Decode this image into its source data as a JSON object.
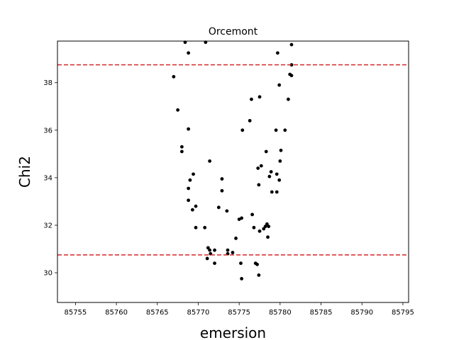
{
  "chart_data": {
    "type": "scatter",
    "title": "Orcemont",
    "xlabel": "emersion",
    "ylabel": "Chi2",
    "xlim": [
      85752.8,
      85795.7
    ],
    "ylim": [
      28.75,
      39.75
    ],
    "xticks": [
      85755,
      85760,
      85765,
      85770,
      85775,
      85780,
      85785,
      85790,
      85795
    ],
    "yticks": [
      30,
      32,
      34,
      36,
      38
    ],
    "grid": false,
    "marker_color": "#000000",
    "hlines": [
      {
        "y": 38.75,
        "color": "#d62728",
        "style": "dashed"
      },
      {
        "y": 30.75,
        "color": "#d62728",
        "style": "dashed"
      }
    ],
    "points": [
      {
        "x": 85768.4,
        "y": 39.7
      },
      {
        "x": 85770.9,
        "y": 39.7
      },
      {
        "x": 85768.8,
        "y": 39.25
      },
      {
        "x": 85767.0,
        "y": 38.25
      },
      {
        "x": 85767.5,
        "y": 36.85
      },
      {
        "x": 85768.8,
        "y": 36.05
      },
      {
        "x": 85768.0,
        "y": 35.3
      },
      {
        "x": 85768.0,
        "y": 35.1
      },
      {
        "x": 85769.4,
        "y": 34.15
      },
      {
        "x": 85769.0,
        "y": 33.9
      },
      {
        "x": 85768.8,
        "y": 33.55
      },
      {
        "x": 85768.8,
        "y": 33.05
      },
      {
        "x": 85769.7,
        "y": 32.8
      },
      {
        "x": 85769.3,
        "y": 32.65
      },
      {
        "x": 85769.7,
        "y": 31.9
      },
      {
        "x": 85770.8,
        "y": 31.9
      },
      {
        "x": 85771.4,
        "y": 34.7
      },
      {
        "x": 85771.2,
        "y": 31.05
      },
      {
        "x": 85771.4,
        "y": 30.95
      },
      {
        "x": 85771.5,
        "y": 30.8
      },
      {
        "x": 85771.1,
        "y": 30.6
      },
      {
        "x": 85772.0,
        "y": 30.95
      },
      {
        "x": 85772.0,
        "y": 30.4
      },
      {
        "x": 85772.5,
        "y": 32.75
      },
      {
        "x": 85772.9,
        "y": 33.95
      },
      {
        "x": 85772.9,
        "y": 33.45
      },
      {
        "x": 85773.5,
        "y": 32.6
      },
      {
        "x": 85773.6,
        "y": 30.95
      },
      {
        "x": 85773.6,
        "y": 30.8
      },
      {
        "x": 85774.2,
        "y": 30.85
      },
      {
        "x": 85774.6,
        "y": 31.45
      },
      {
        "x": 85775.0,
        "y": 32.25
      },
      {
        "x": 85775.3,
        "y": 32.3
      },
      {
        "x": 85775.2,
        "y": 30.4
      },
      {
        "x": 85775.3,
        "y": 29.75
      },
      {
        "x": 85775.4,
        "y": 36.0
      },
      {
        "x": 85776.3,
        "y": 36.4
      },
      {
        "x": 85776.5,
        "y": 37.3
      },
      {
        "x": 85776.6,
        "y": 32.45
      },
      {
        "x": 85776.8,
        "y": 31.9
      },
      {
        "x": 85777.0,
        "y": 30.4
      },
      {
        "x": 85777.2,
        "y": 30.35
      },
      {
        "x": 85777.3,
        "y": 34.4
      },
      {
        "x": 85777.4,
        "y": 33.7
      },
      {
        "x": 85777.5,
        "y": 31.75
      },
      {
        "x": 85777.4,
        "y": 29.9
      },
      {
        "x": 85777.5,
        "y": 37.4
      },
      {
        "x": 85777.7,
        "y": 34.5
      },
      {
        "x": 85778.0,
        "y": 31.85
      },
      {
        "x": 85778.2,
        "y": 31.95
      },
      {
        "x": 85778.3,
        "y": 35.1
      },
      {
        "x": 85778.4,
        "y": 32.05
      },
      {
        "x": 85778.6,
        "y": 31.95
      },
      {
        "x": 85778.5,
        "y": 31.5
      },
      {
        "x": 85778.7,
        "y": 34.05
      },
      {
        "x": 85778.9,
        "y": 34.25
      },
      {
        "x": 85779.0,
        "y": 33.4
      },
      {
        "x": 85779.6,
        "y": 34.15
      },
      {
        "x": 85779.6,
        "y": 33.4
      },
      {
        "x": 85779.5,
        "y": 36.0
      },
      {
        "x": 85779.7,
        "y": 39.25
      },
      {
        "x": 85779.9,
        "y": 37.9
      },
      {
        "x": 85780.1,
        "y": 35.15
      },
      {
        "x": 85780.0,
        "y": 34.7
      },
      {
        "x": 85779.9,
        "y": 33.9
      },
      {
        "x": 85780.6,
        "y": 36.0
      },
      {
        "x": 85781.0,
        "y": 37.3
      },
      {
        "x": 85781.2,
        "y": 38.35
      },
      {
        "x": 85781.4,
        "y": 38.3
      },
      {
        "x": 85781.4,
        "y": 38.75
      },
      {
        "x": 85781.4,
        "y": 39.6
      }
    ]
  }
}
